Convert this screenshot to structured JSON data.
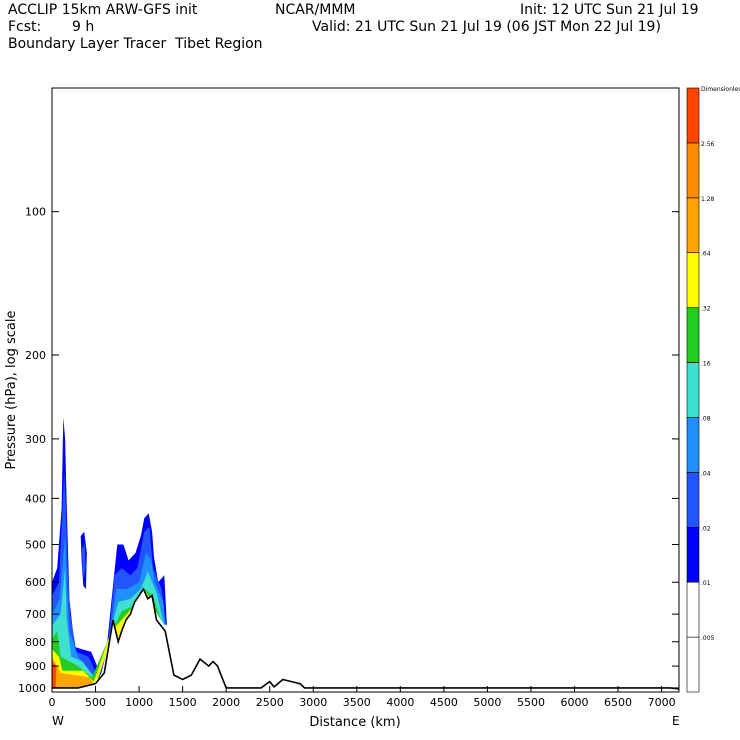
{
  "header": {
    "model": "ACCLIP 15km ARW-GFS init",
    "org": "NCAR/MMM",
    "init": "Init: 12 UTC Sun 21 Jul 19",
    "fcst_label": "Fcst:",
    "fcst_value": "9 h",
    "valid": "Valid: 21 UTC Sun 21 Jul 19 (06 JST Mon 22 Jul 19)",
    "field": "Boundary Layer Tracer  Tibet Region"
  },
  "colors": {
    "c1": "#0000ff",
    "c2": "#2255ff",
    "c3": "#1e90ff",
    "c4": "#40e0d0",
    "c5": "#22cc22",
    "c6": "#ffff00",
    "c7": "#ffa500",
    "c8": "#ff4500"
  },
  "chart_data": {
    "type": "heatmap",
    "title": "Boundary Layer Tracer  Tibet Region",
    "xlabel": "Distance (km)",
    "ylabel": "Pressure (hPa), log scale",
    "xlim": [
      0,
      7200
    ],
    "ylim": [
      1020,
      55
    ],
    "x_ticks": [
      0,
      500,
      1000,
      1500,
      2000,
      2500,
      3000,
      3500,
      4000,
      4500,
      5000,
      5500,
      6000,
      6500,
      7000
    ],
    "y_ticks": [
      100,
      200,
      300,
      400,
      500,
      600,
      700,
      800,
      900,
      1000
    ],
    "x_end_labels": {
      "left": "W",
      "right": "E"
    },
    "colorbar": {
      "levels": [
        ".005",
        ".01",
        ".02",
        ".04",
        ".08",
        ".16",
        ".32",
        ".64",
        "1.28",
        "2.56",
        "Dimensionless"
      ],
      "colors": [
        "#ffffff",
        "#0000ff",
        "#2255ff",
        "#1e90ff",
        "#40e0d0",
        "#22cc22",
        "#ffff00",
        "#ffa500",
        "#ff8c00",
        "#ff4500"
      ]
    },
    "terrain": [
      [
        0,
        1000
      ],
      [
        300,
        1000
      ],
      [
        500,
        980
      ],
      [
        600,
        930
      ],
      [
        650,
        820
      ],
      [
        700,
        720
      ],
      [
        760,
        800
      ],
      [
        800,
        760
      ],
      [
        850,
        720
      ],
      [
        900,
        700
      ],
      [
        950,
        660
      ],
      [
        1000,
        640
      ],
      [
        1050,
        620
      ],
      [
        1100,
        650
      ],
      [
        1150,
        640
      ],
      [
        1200,
        720
      ],
      [
        1250,
        740
      ],
      [
        1300,
        760
      ],
      [
        1400,
        940
      ],
      [
        1500,
        960
      ],
      [
        1600,
        940
      ],
      [
        1700,
        870
      ],
      [
        1800,
        900
      ],
      [
        1850,
        880
      ],
      [
        1900,
        900
      ],
      [
        2000,
        1000
      ],
      [
        2400,
        1000
      ],
      [
        2500,
        970
      ],
      [
        2550,
        995
      ],
      [
        2650,
        960
      ],
      [
        2750,
        970
      ],
      [
        2850,
        980
      ],
      [
        2900,
        1000
      ],
      [
        7100,
        1000
      ],
      [
        7200,
        1005
      ]
    ]
  }
}
